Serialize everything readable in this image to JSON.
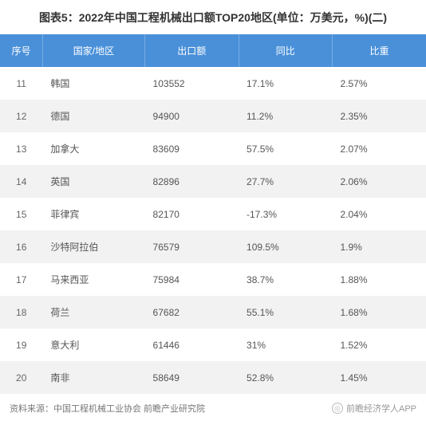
{
  "title": "图表5：2022年中国工程机械出口额TOP20地区(单位：万美元，%)(二)",
  "table": {
    "type": "table",
    "header_bg": "#4a90d9",
    "header_color": "#ffffff",
    "row_even_bg": "#f2f2f2",
    "row_odd_bg": "#ffffff",
    "columns": [
      {
        "key": "seq",
        "label": "序号",
        "width": "10%"
      },
      {
        "key": "region",
        "label": "国家/地区",
        "width": "24%"
      },
      {
        "key": "export",
        "label": "出口额",
        "width": "22%"
      },
      {
        "key": "yoy",
        "label": "同比",
        "width": "22%"
      },
      {
        "key": "share",
        "label": "比重",
        "width": "22%"
      }
    ],
    "rows": [
      {
        "seq": "11",
        "region": "韩国",
        "export": "103552",
        "yoy": "17.1%",
        "share": "2.57%"
      },
      {
        "seq": "12",
        "region": "德国",
        "export": "94900",
        "yoy": "11.2%",
        "share": "2.35%"
      },
      {
        "seq": "13",
        "region": "加拿大",
        "export": "83609",
        "yoy": "57.5%",
        "share": "2.07%"
      },
      {
        "seq": "14",
        "region": "英国",
        "export": "82896",
        "yoy": "27.7%",
        "share": "2.06%"
      },
      {
        "seq": "15",
        "region": "菲律宾",
        "export": "82170",
        "yoy": "-17.3%",
        "share": "2.04%"
      },
      {
        "seq": "16",
        "region": "沙特阿拉伯",
        "export": "76579",
        "yoy": "109.5%",
        "share": "1.9%"
      },
      {
        "seq": "17",
        "region": "马来西亚",
        "export": "75984",
        "yoy": "38.7%",
        "share": "1.88%"
      },
      {
        "seq": "18",
        "region": "荷兰",
        "export": "67682",
        "yoy": "55.1%",
        "share": "1.68%"
      },
      {
        "seq": "19",
        "region": "意大利",
        "export": "61446",
        "yoy": "31%",
        "share": "1.52%"
      },
      {
        "seq": "20",
        "region": "南非",
        "export": "58649",
        "yoy": "52.8%",
        "share": "1.45%"
      }
    ]
  },
  "footer": {
    "source": "资料来源：中国工程机械工业协会 前瞻产业研究院",
    "watermark": "前瞻经济学人APP",
    "watermark_icon": "◎"
  }
}
